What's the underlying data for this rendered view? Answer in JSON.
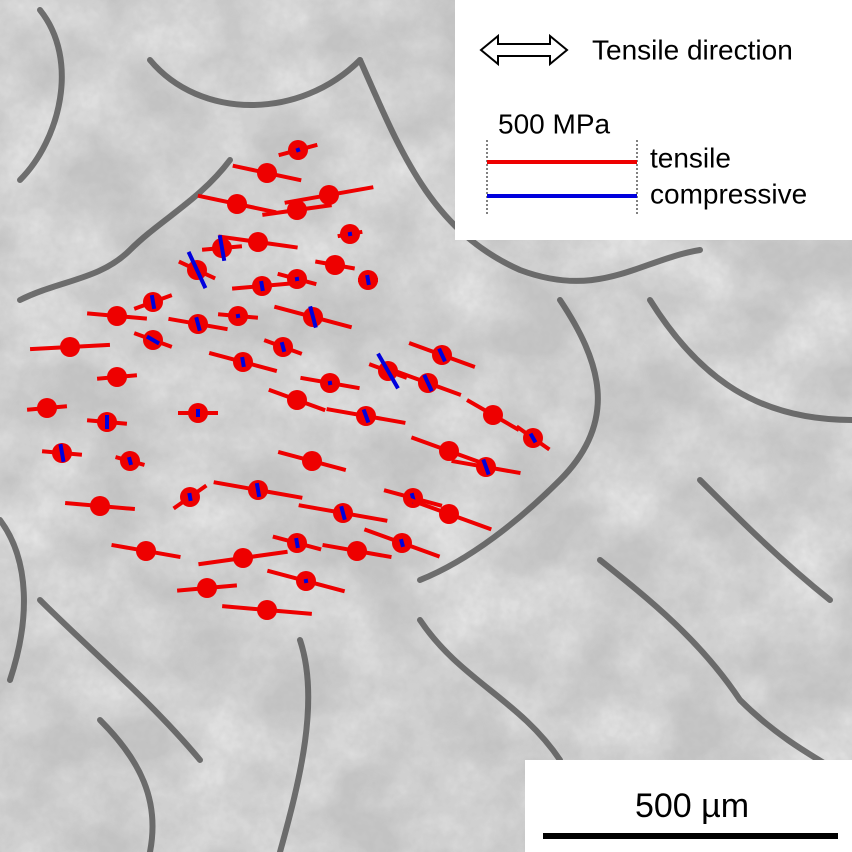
{
  "legend": {
    "direction": "Tensile direction",
    "scale": "500 MPa",
    "tensile": "tensile",
    "compressive": "compressive"
  },
  "scale_bar": {
    "label": "500 µm"
  }
}
